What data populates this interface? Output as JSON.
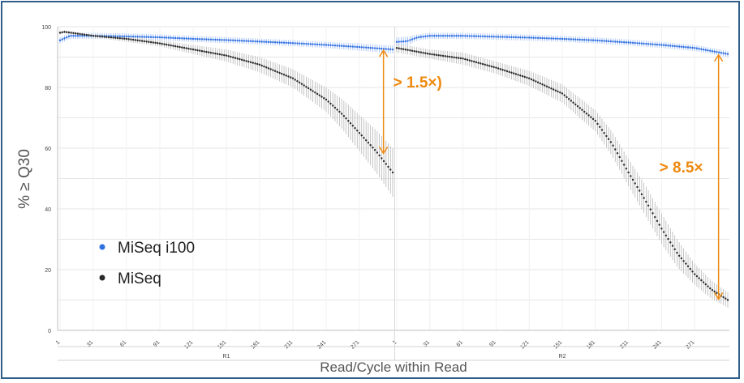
{
  "chart_data": {
    "type": "scatter",
    "xlabel": "Read/Cycle within Read",
    "ylabel": "% ≥ Q30",
    "ylim": [
      0,
      100
    ],
    "y_ticks": [
      0,
      20,
      40,
      60,
      80,
      100
    ],
    "reads": [
      {
        "name": "R1",
        "cycles": 301,
        "tick_labels": [
          "1",
          "31",
          "61",
          "91",
          "121",
          "151",
          "181",
          "211",
          "241",
          "271"
        ]
      },
      {
        "name": "R2",
        "cycles": 301,
        "tick_labels": [
          "1",
          "31",
          "61",
          "91",
          "121",
          "151",
          "181",
          "211",
          "241",
          "271"
        ]
      }
    ],
    "grid": true,
    "legend_position": "bottom-left",
    "series": [
      {
        "name": "MiSeq i100",
        "color": "#2f6fe0",
        "error_color": "#9bbcf5",
        "R1": {
          "x": [
            1,
            10,
            31,
            61,
            91,
            121,
            151,
            181,
            211,
            241,
            271,
            301
          ],
          "y": [
            95.5,
            97,
            97,
            96.8,
            96.5,
            96,
            95.6,
            95.1,
            94.6,
            94,
            93.3,
            92.5
          ],
          "err": [
            1,
            1,
            1,
            1,
            1,
            1,
            1,
            1,
            1,
            1,
            1.2,
            1.3
          ]
        },
        "R2": {
          "x": [
            1,
            10,
            20,
            31,
            61,
            91,
            121,
            151,
            181,
            211,
            241,
            271,
            301
          ],
          "y": [
            95,
            95.2,
            96.5,
            97,
            97,
            96.7,
            96.4,
            96,
            95.5,
            94.8,
            94,
            93,
            91
          ],
          "err": [
            1.5,
            1.5,
            1,
            1,
            1,
            1,
            1,
            1,
            1,
            1,
            1,
            1,
            1
          ]
        }
      },
      {
        "name": "MiSeq",
        "color": "#2a2a2a",
        "error_color": "#b5b5b5",
        "R1": {
          "x": [
            1,
            5,
            31,
            61,
            91,
            121,
            151,
            181,
            211,
            241,
            256,
            271,
            286,
            301
          ],
          "y": [
            98,
            98.3,
            97,
            96,
            94.5,
            92.5,
            90.5,
            87.5,
            83,
            76,
            71,
            65,
            59,
            52
          ],
          "err": [
            0.5,
            0.5,
            0.5,
            1,
            1,
            1.5,
            2,
            2.5,
            3,
            4,
            5,
            6,
            7,
            8
          ]
        },
        "R2": {
          "x": [
            1,
            31,
            61,
            91,
            121,
            151,
            181,
            196,
            211,
            226,
            241,
            256,
            271,
            286,
            301
          ],
          "y": [
            93,
            91,
            89.5,
            86.5,
            83,
            78,
            69,
            61.5,
            52,
            43,
            33.5,
            25,
            18.5,
            13.5,
            10
          ],
          "err": [
            1.5,
            1.5,
            2,
            2,
            2.5,
            3,
            3.5,
            4,
            4.5,
            5,
            5,
            4.5,
            3.5,
            3,
            2.5
          ]
        }
      }
    ],
    "annotations": [
      {
        "text": "> 1.5×)",
        "read": "R1",
        "x": 300,
        "from": 92.5,
        "to": 58,
        "color": "#ee8a10"
      },
      {
        "text": "> 8.5×",
        "read": "R2",
        "x": 300,
        "from": 91,
        "to": 10,
        "color": "#ee8a10"
      }
    ]
  }
}
